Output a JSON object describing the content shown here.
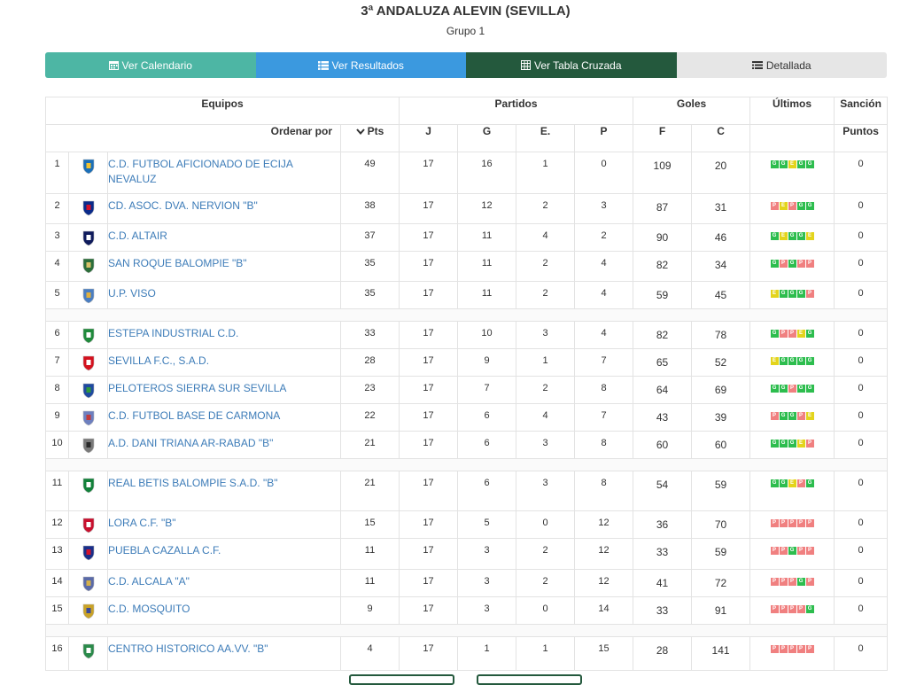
{
  "header": {
    "title": "3ª ANDALUZA ALEVIN (SEVILLA)",
    "subtitle": "Grupo 1"
  },
  "tabs": [
    {
      "label": "Ver Calendario",
      "icon": "calendar-icon",
      "color": "#4db6a4"
    },
    {
      "label": "Ver Resultados",
      "icon": "list-icon",
      "color": "#3b99df"
    },
    {
      "label": "Ver Tabla Cruzada",
      "icon": "table-icon",
      "color": "#24593d"
    },
    {
      "label": "Detallada",
      "icon": "list-detail-icon",
      "color": "#e6e6e6"
    }
  ],
  "table": {
    "groups": {
      "equipos": "Equipos",
      "partidos": "Partidos",
      "goles": "Goles",
      "ultimos": "Últimos",
      "sancion": "Sanción"
    },
    "columns": {
      "ordenar_por": "Ordenar por",
      "pts": "Pts",
      "j": "J",
      "g": "G",
      "e": "E.",
      "p": "P",
      "f": "F",
      "c": "C",
      "puntos": "Puntos"
    },
    "rows": [
      {
        "pos": "1",
        "name": "C.D. FUTBOL AFICIONADO DE ECIJA NEVALUZ",
        "pts": "49",
        "j": "17",
        "g": "16",
        "e": "1",
        "p": "0",
        "f": "109",
        "c": "20",
        "last": [
          "G",
          "G",
          "E",
          "G",
          "G"
        ],
        "sancion": "0",
        "crest": "ecija-crest-icon"
      },
      {
        "pos": "2",
        "name": "CD. ASOC. DVA. NERVION \"B\"",
        "pts": "38",
        "j": "17",
        "g": "12",
        "e": "2",
        "p": "3",
        "f": "87",
        "c": "31",
        "last": [
          "P",
          "E",
          "P",
          "G",
          "G"
        ],
        "sancion": "0",
        "crest": "nervion-crest-icon"
      },
      {
        "pos": "3",
        "name": "C.D. ALTAIR",
        "pts": "37",
        "j": "17",
        "g": "11",
        "e": "4",
        "p": "2",
        "f": "90",
        "c": "46",
        "last": [
          "G",
          "E",
          "G",
          "G",
          "E"
        ],
        "sancion": "0",
        "crest": "altair-crest-icon"
      },
      {
        "pos": "4",
        "name": "SAN ROQUE BALOMPIE \"B\"",
        "pts": "35",
        "j": "17",
        "g": "11",
        "e": "2",
        "p": "4",
        "f": "82",
        "c": "34",
        "last": [
          "G",
          "P",
          "G",
          "P",
          "P"
        ],
        "sancion": "0",
        "crest": "san-roque-crest-icon"
      },
      {
        "pos": "5",
        "name": "U.P. VISO",
        "pts": "35",
        "j": "17",
        "g": "11",
        "e": "2",
        "p": "4",
        "f": "59",
        "c": "45",
        "last": [
          "E",
          "G",
          "G",
          "G",
          "P"
        ],
        "sancion": "0",
        "crest": "viso-crest-icon"
      },
      {
        "pos": "6",
        "name": "ESTEPA INDUSTRIAL C.D.",
        "pts": "33",
        "j": "17",
        "g": "10",
        "e": "3",
        "p": "4",
        "f": "82",
        "c": "78",
        "last": [
          "G",
          "P",
          "P",
          "E",
          "G"
        ],
        "sancion": "0",
        "crest": "estepa-crest-icon"
      },
      {
        "pos": "7",
        "name": "SEVILLA F.C., S.A.D.",
        "pts": "28",
        "j": "17",
        "g": "9",
        "e": "1",
        "p": "7",
        "f": "65",
        "c": "52",
        "last": [
          "E",
          "G",
          "G",
          "G",
          "G"
        ],
        "sancion": "0",
        "crest": "sevilla-crest-icon"
      },
      {
        "pos": "8",
        "name": "PELOTEROS SIERRA SUR SEVILLA",
        "pts": "23",
        "j": "17",
        "g": "7",
        "e": "2",
        "p": "8",
        "f": "64",
        "c": "69",
        "last": [
          "G",
          "G",
          "P",
          "G",
          "G"
        ],
        "sancion": "0",
        "crest": "peloteros-crest-icon"
      },
      {
        "pos": "9",
        "name": "C.D. FUTBOL BASE DE CARMONA",
        "pts": "22",
        "j": "17",
        "g": "6",
        "e": "4",
        "p": "7",
        "f": "43",
        "c": "39",
        "last": [
          "P",
          "G",
          "G",
          "P",
          "E"
        ],
        "sancion": "0",
        "crest": "carmona-crest-icon"
      },
      {
        "pos": "10",
        "name": "A.D. DANI TRIANA AR-RABAD \"B\"",
        "pts": "21",
        "j": "17",
        "g": "6",
        "e": "3",
        "p": "8",
        "f": "60",
        "c": "60",
        "last": [
          "G",
          "G",
          "G",
          "E",
          "P"
        ],
        "sancion": "0",
        "crest": "triana-crest-icon"
      },
      {
        "pos": "11",
        "name": "REAL BETIS BALOMPIE S.A.D. \"B\"",
        "pts": "21",
        "j": "17",
        "g": "6",
        "e": "3",
        "p": "8",
        "f": "54",
        "c": "59",
        "last": [
          "G",
          "G",
          "E",
          "P",
          "G"
        ],
        "sancion": "0",
        "crest": "betis-crest-icon"
      },
      {
        "pos": "12",
        "name": "LORA C.F. \"B\"",
        "pts": "15",
        "j": "17",
        "g": "5",
        "e": "0",
        "p": "12",
        "f": "36",
        "c": "70",
        "last": [
          "P",
          "P",
          "P",
          "P",
          "P"
        ],
        "sancion": "0",
        "crest": "lora-crest-icon"
      },
      {
        "pos": "13",
        "name": "PUEBLA CAZALLA C.F.",
        "pts": "11",
        "j": "17",
        "g": "3",
        "e": "2",
        "p": "12",
        "f": "33",
        "c": "59",
        "last": [
          "P",
          "P",
          "G",
          "P",
          "P"
        ],
        "sancion": "0",
        "crest": "puebla-crest-icon"
      },
      {
        "pos": "14",
        "name": "C.D. ALCALA \"A\"",
        "pts": "11",
        "j": "17",
        "g": "3",
        "e": "2",
        "p": "12",
        "f": "41",
        "c": "72",
        "last": [
          "P",
          "P",
          "P",
          "G",
          "P"
        ],
        "sancion": "0",
        "crest": "alcala-crest-icon"
      },
      {
        "pos": "15",
        "name": "C.D. MOSQUITO",
        "pts": "9",
        "j": "17",
        "g": "3",
        "e": "0",
        "p": "14",
        "f": "33",
        "c": "91",
        "last": [
          "P",
          "P",
          "P",
          "P",
          "G"
        ],
        "sancion": "0",
        "crest": "mosquito-crest-icon"
      },
      {
        "pos": "16",
        "name": "CENTRO HISTORICO AA.VV. \"B\"",
        "pts": "4",
        "j": "17",
        "g": "1",
        "e": "1",
        "p": "15",
        "f": "28",
        "c": "141",
        "last": [
          "P",
          "P",
          "P",
          "P",
          "P"
        ],
        "sancion": "0",
        "crest": "centro-historico-crest-icon"
      }
    ],
    "separators_after": [
      5,
      10,
      15
    ],
    "result_colors": {
      "G": "#2dbd4e",
      "E": "#e3d41c",
      "P": "#f08080"
    }
  }
}
